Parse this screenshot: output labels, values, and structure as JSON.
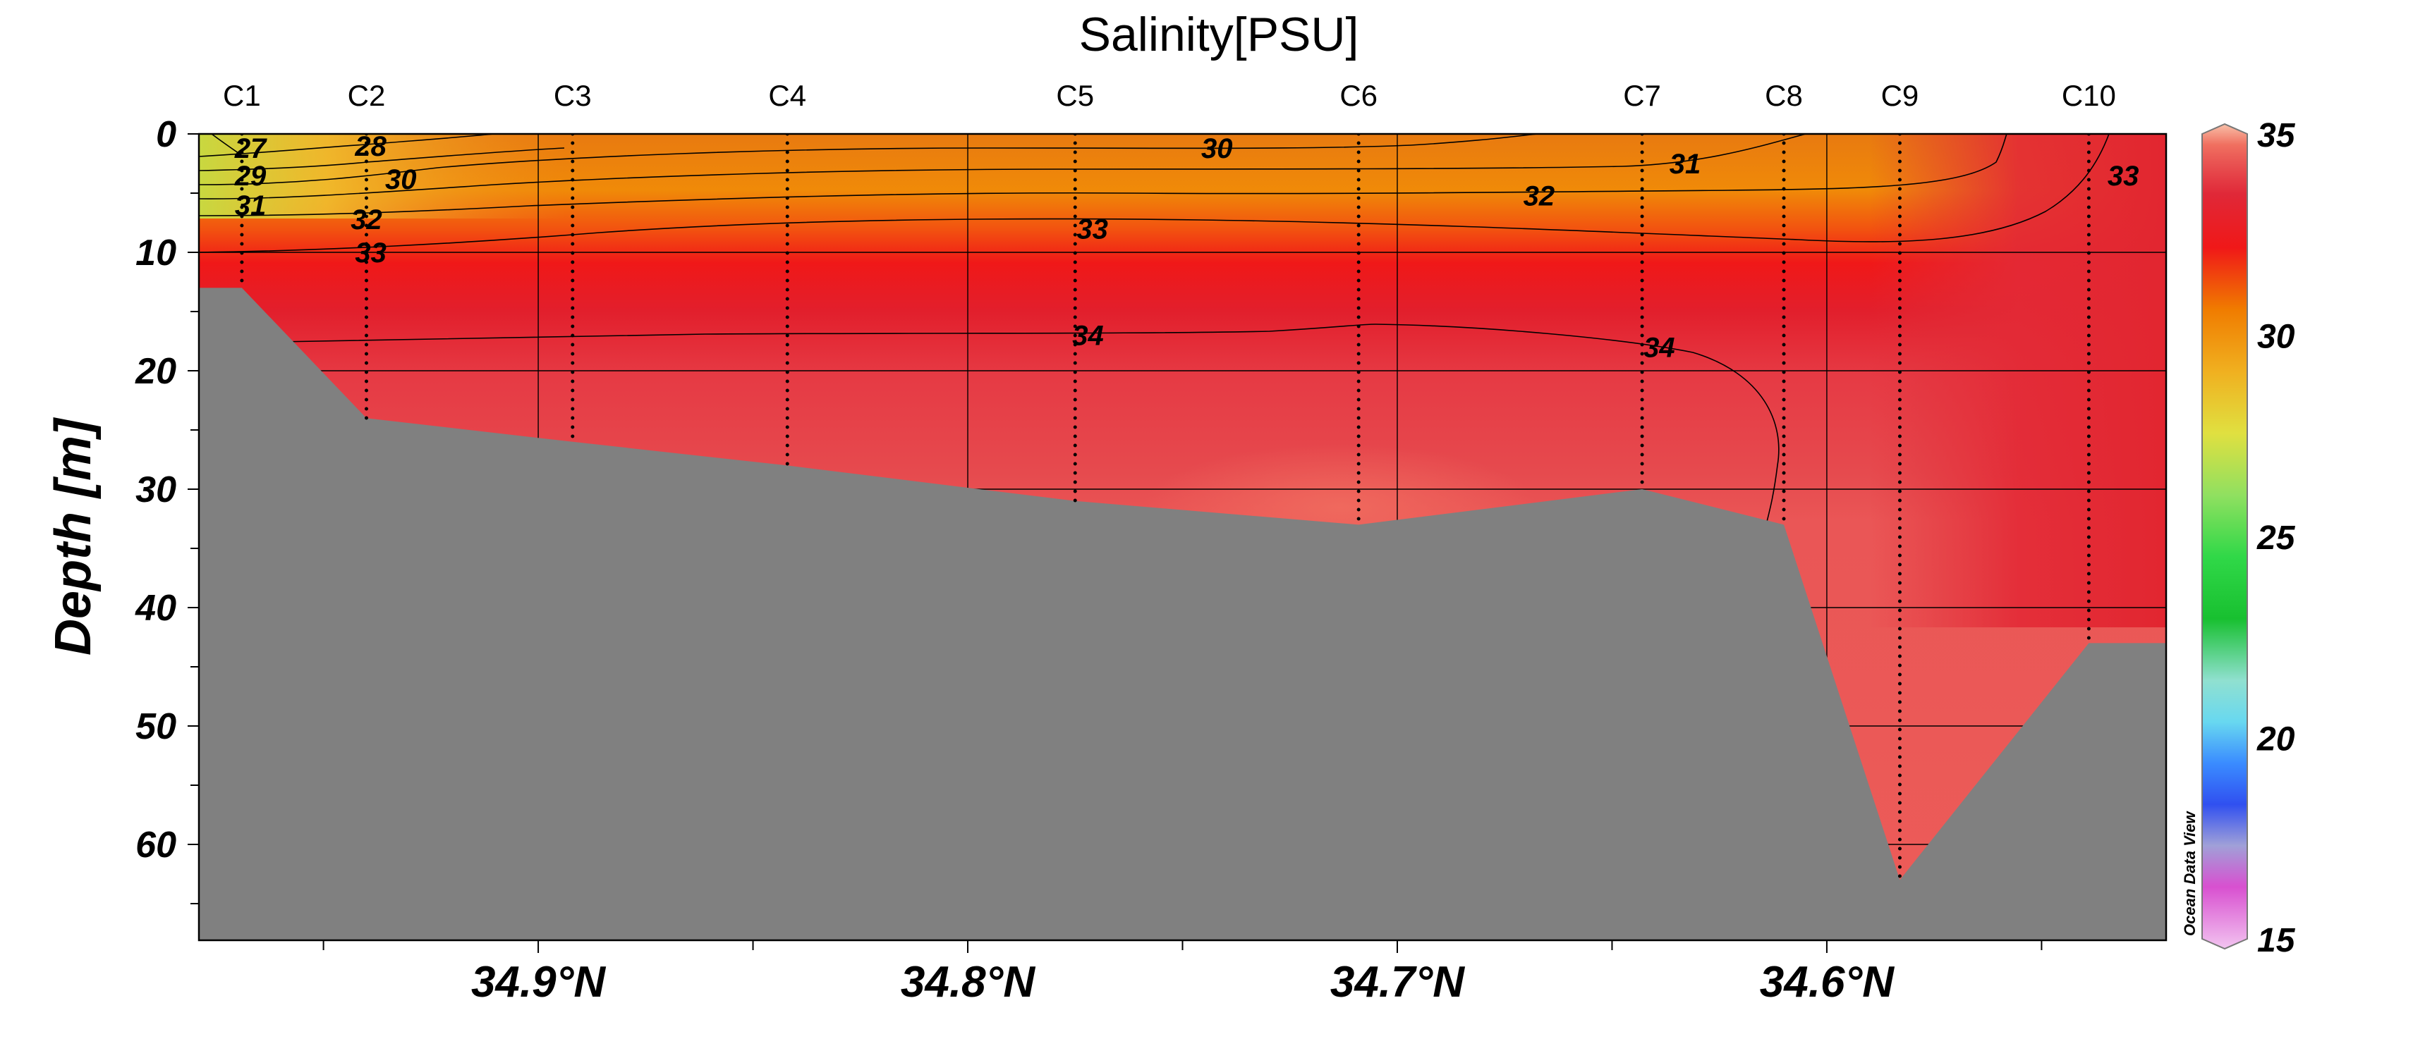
{
  "chart_data": {
    "type": "heatmap",
    "title": "Salinity[PSU]",
    "ylabel": "Depth [m]",
    "xlabel": "",
    "watermark": "Ocean Data View",
    "x_axis": {
      "ticks": [
        {
          "value": 34.9,
          "label": "34.9°N"
        },
        {
          "value": 34.8,
          "label": "34.8°N"
        },
        {
          "value": 34.7,
          "label": "34.7°N"
        },
        {
          "value": 34.6,
          "label": "34.6°N"
        }
      ],
      "range": [
        34.979,
        34.521
      ],
      "minor_ticks": [
        34.95,
        34.85,
        34.75,
        34.65,
        34.55
      ]
    },
    "y_axis": {
      "ticks": [
        0,
        10,
        20,
        30,
        40,
        50,
        60
      ],
      "minor_ticks": [
        5,
        15,
        25,
        35,
        45,
        55,
        65
      ],
      "range": [
        0,
        68
      ],
      "inverted": true
    },
    "grid": true,
    "colorbar": {
      "range": [
        15,
        35
      ],
      "ticks": [
        35,
        30,
        25,
        20,
        15
      ],
      "placement": "right",
      "stops": [
        {
          "v": 15,
          "color": "#f2c4f0"
        },
        {
          "v": 16.5,
          "color": "#d850d0"
        },
        {
          "v": 17.5,
          "color": "#a0a0d8"
        },
        {
          "v": 18.5,
          "color": "#3050f0"
        },
        {
          "v": 19.5,
          "color": "#3a8cff"
        },
        {
          "v": 20.5,
          "color": "#68d8f0"
        },
        {
          "v": 21.5,
          "color": "#90e0d0"
        },
        {
          "v": 23,
          "color": "#18c030"
        },
        {
          "v": 24.5,
          "color": "#30d848"
        },
        {
          "v": 26,
          "color": "#90e060"
        },
        {
          "v": 27.5,
          "color": "#e0e040"
        },
        {
          "v": 29,
          "color": "#f0b020"
        },
        {
          "v": 30.5,
          "color": "#f07c00"
        },
        {
          "v": 32,
          "color": "#f01818"
        },
        {
          "v": 33.3,
          "color": "#e02838"
        },
        {
          "v": 34,
          "color": "#e85050"
        },
        {
          "v": 34.5,
          "color": "#f07060"
        },
        {
          "v": 35,
          "color": "#f8c0a8"
        }
      ]
    },
    "stations": [
      {
        "name": "C1",
        "lat": 34.969,
        "max_depth": 13
      },
      {
        "name": "C2",
        "lat": 34.94,
        "max_depth": 24
      },
      {
        "name": "C3",
        "lat": 34.892,
        "max_depth": 26
      },
      {
        "name": "C4",
        "lat": 34.842,
        "max_depth": 28
      },
      {
        "name": "C5",
        "lat": 34.775,
        "max_depth": 31
      },
      {
        "name": "C6",
        "lat": 34.709,
        "max_depth": 33
      },
      {
        "name": "C7",
        "lat": 34.643,
        "max_depth": 30
      },
      {
        "name": "C8",
        "lat": 34.61,
        "max_depth": 33
      },
      {
        "name": "C9",
        "lat": 34.583,
        "max_depth": 63
      },
      {
        "name": "C10",
        "lat": 34.539,
        "max_depth": 43
      }
    ],
    "contour_labels": [
      {
        "value": "27",
        "lat": 34.967,
        "depth": 1.2
      },
      {
        "value": "28",
        "lat": 34.939,
        "depth": 1.0
      },
      {
        "value": "29",
        "lat": 34.967,
        "depth": 3.5
      },
      {
        "value": "30",
        "lat": 34.932,
        "depth": 3.8
      },
      {
        "value": "30",
        "lat": 34.742,
        "depth": 1.2
      },
      {
        "value": "31",
        "lat": 34.967,
        "depth": 6.0
      },
      {
        "value": "31",
        "lat": 34.633,
        "depth": 2.5
      },
      {
        "value": "32",
        "lat": 34.94,
        "depth": 7.2
      },
      {
        "value": "32",
        "lat": 34.667,
        "depth": 5.2
      },
      {
        "value": "33",
        "lat": 34.939,
        "depth": 10.0
      },
      {
        "value": "33",
        "lat": 34.771,
        "depth": 8.0
      },
      {
        "value": "33",
        "lat": 34.531,
        "depth": 3.5
      },
      {
        "value": "34",
        "lat": 34.772,
        "depth": 17.0
      },
      {
        "value": "34",
        "lat": 34.639,
        "depth": 18.0
      }
    ]
  }
}
